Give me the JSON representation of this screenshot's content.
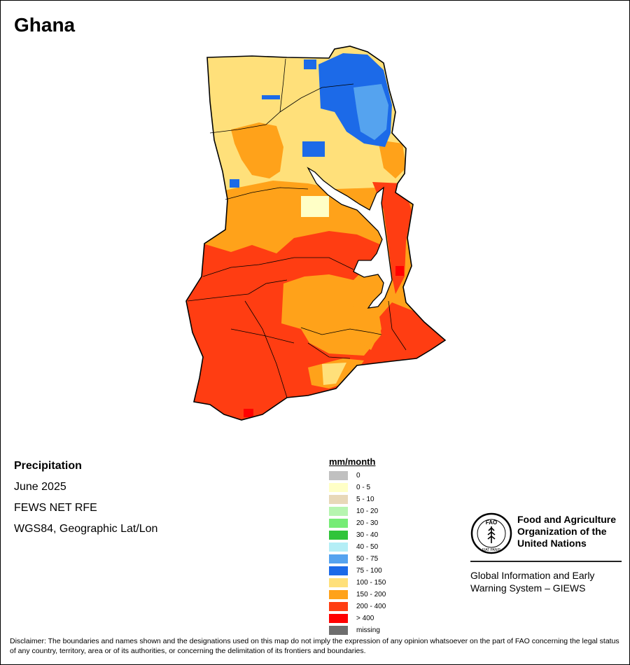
{
  "title": "Ghana",
  "info": {
    "variable": "Precipitation",
    "period": "June 2025",
    "source": "FEWS NET RFE",
    "projection": "WGS84, Geographic Lat/Lon"
  },
  "legend": {
    "title": "mm/month",
    "items": [
      {
        "label": "0",
        "color": "#c0c0c0"
      },
      {
        "label": "0 - 5",
        "color": "#ffffc6"
      },
      {
        "label": "5 - 10",
        "color": "#e8d8b8"
      },
      {
        "label": "10 - 20",
        "color": "#b6f5b0"
      },
      {
        "label": "20 - 30",
        "color": "#76ec76"
      },
      {
        "label": "30 - 40",
        "color": "#30c43a"
      },
      {
        "label": "40 - 50",
        "color": "#b4eef6"
      },
      {
        "label": "50 - 75",
        "color": "#55a3ef"
      },
      {
        "label": "75 - 100",
        "color": "#1c6ae8"
      },
      {
        "label": "100 - 150",
        "color": "#ffe07a"
      },
      {
        "label": "150 - 200",
        "color": "#ffa21a"
      },
      {
        "label": "200 - 400",
        "color": "#ff3d12"
      },
      {
        "label": "> 400",
        "color": "#ff0000"
      },
      {
        "label": "missing",
        "color": "#6e6e6e"
      }
    ]
  },
  "org": {
    "name": "Food and Agriculture Organization of the United Nations",
    "system": "Global Information and Early Warning System – GIEWS",
    "logo_text": "FAO",
    "motto": "FIAT PANIS"
  },
  "disclaimer": "Disclaimer: The boundaries and names shown and the designations used on this map do not imply the expression of any opinion whatsoever on the part of FAO concerning the legal status of any country, territory, area or of its authorities, or concerning the delimitation of its frontiers and boundaries."
}
